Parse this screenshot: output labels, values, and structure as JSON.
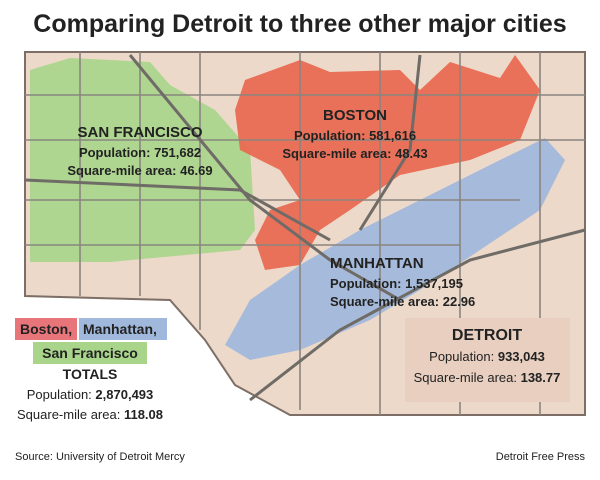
{
  "title": "Comparing Detroit to three other major cities",
  "cities": [
    {
      "name": "SAN FRANCISCO",
      "population_label": "Population:",
      "population": "751,682",
      "area_label": "Square-mile area:",
      "area": "46.69"
    },
    {
      "name": "BOSTON",
      "population_label": "Population:",
      "population": "581,616",
      "area_label": "Square-mile area:",
      "area": "48.43"
    },
    {
      "name": "MANHATTAN",
      "population_label": "Population:",
      "population": "1,537,195",
      "area_label": "Square-mile area:",
      "area": "22.96"
    },
    {
      "name": "DETROIT",
      "population_label": "Population:",
      "population": "933,043",
      "area_label": "Square-mile area:",
      "area": "138.77"
    }
  ],
  "totals": {
    "cities": [
      "Boston,",
      "Manhattan,",
      "San Francisco"
    ],
    "heading": "TOTALS",
    "population_label": "Population:",
    "population": "2,870,493",
    "area_label": "Square-mile area:",
    "area": "118.08"
  },
  "source": "Source: University of Detroit Mercy",
  "credit": "Detroit Free Press"
}
